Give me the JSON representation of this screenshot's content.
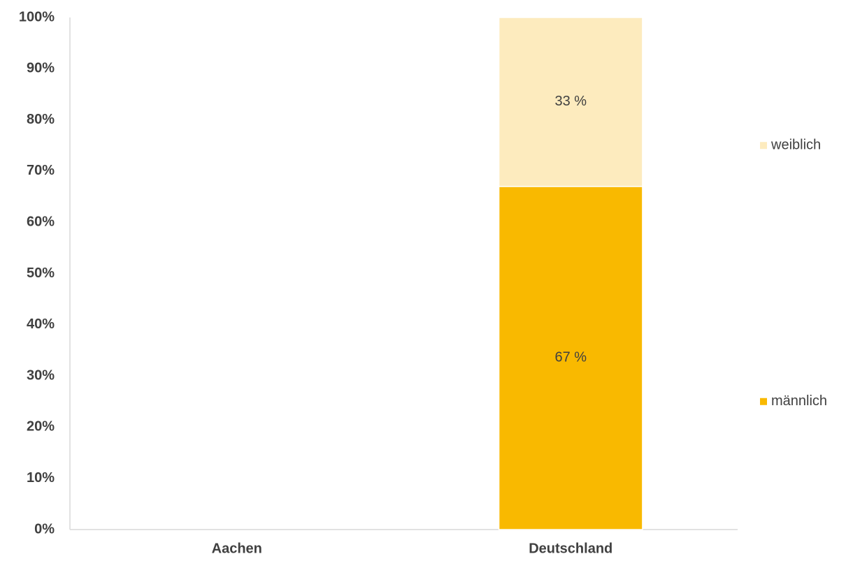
{
  "chart_data": {
    "type": "stacked_bar",
    "categories": [
      "Aachen",
      "Deutschland"
    ],
    "series": [
      {
        "name": "männlich",
        "color": "#f9b900",
        "values": [
          null,
          67
        ],
        "value_labels": [
          null,
          "67 %"
        ]
      },
      {
        "name": "weiblich",
        "color": "#fdebbe",
        "values": [
          null,
          33
        ],
        "value_labels": [
          null,
          "33 %"
        ]
      }
    ],
    "ylim": [
      0,
      100
    ],
    "yticks": [
      {
        "value": 0,
        "label": "0%"
      },
      {
        "value": 10,
        "label": "10%"
      },
      {
        "value": 20,
        "label": "20%"
      },
      {
        "value": 30,
        "label": "30%"
      },
      {
        "value": 40,
        "label": "40%"
      },
      {
        "value": 50,
        "label": "50%"
      },
      {
        "value": 60,
        "label": "60%"
      },
      {
        "value": 70,
        "label": "70%"
      },
      {
        "value": 80,
        "label": "80%"
      },
      {
        "value": 90,
        "label": "90%"
      },
      {
        "value": 100,
        "label": "100%"
      }
    ],
    "grid": false,
    "legend": "right"
  }
}
